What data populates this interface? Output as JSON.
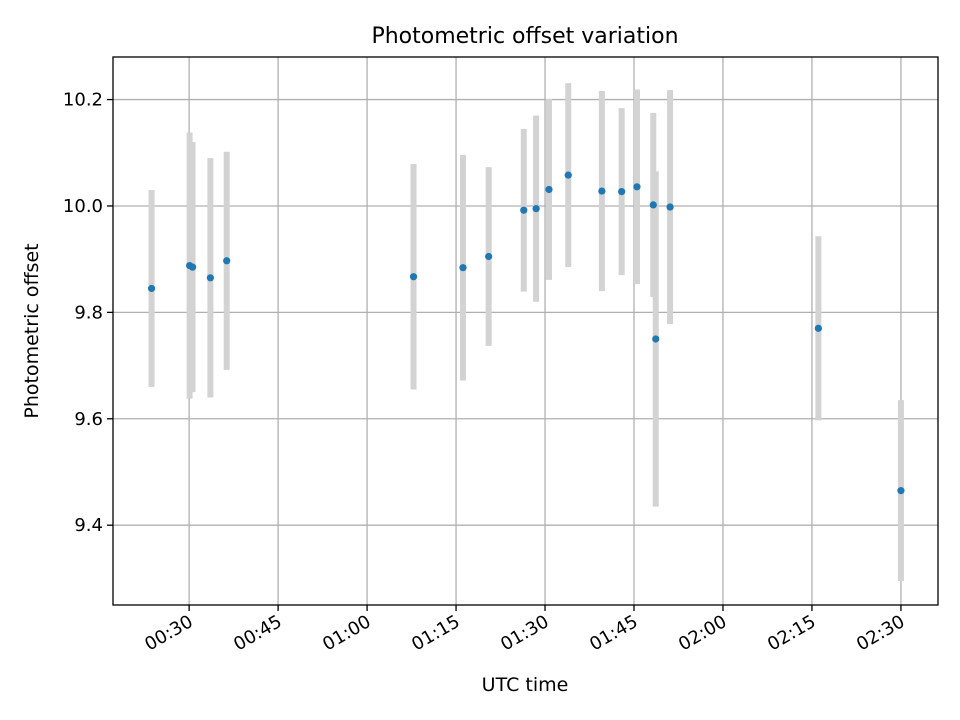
{
  "chart_data": {
    "type": "scatter",
    "title": "Photometric offset variation",
    "xlabel": "UTC time",
    "ylabel": "Photometric offset",
    "x_ticks": [
      "00:30",
      "00:45",
      "01:00",
      "01:15",
      "01:30",
      "01:45",
      "02:00",
      "02:15",
      "02:30"
    ],
    "y_ticks": [
      "9.4",
      "9.6",
      "9.8",
      "10.0",
      "10.2"
    ],
    "xlim": [
      "00:17:10",
      "02:36:15"
    ],
    "ylim": [
      9.25,
      10.28
    ],
    "grid": true,
    "colors": {
      "point": "#1f77b4",
      "errorbar": "#d3d3d3",
      "grid": "#b0b0b0",
      "axes": "#000000"
    },
    "series": [
      {
        "points": [
          {
            "x": "00:23:40",
            "y": 9.845,
            "err": 0.185
          },
          {
            "x": "00:30:05",
            "y": 9.888,
            "err": 0.25
          },
          {
            "x": "00:30:35",
            "y": 9.885,
            "err": 0.235
          },
          {
            "x": "00:33:35",
            "y": 9.865,
            "err": 0.225
          },
          {
            "x": "00:36:20",
            "y": 9.897,
            "err": 0.205
          },
          {
            "x": "01:07:50",
            "y": 9.867,
            "err": 0.212
          },
          {
            "x": "01:16:10",
            "y": 9.884,
            "err": 0.212
          },
          {
            "x": "01:20:30",
            "y": 9.905,
            "err": 0.168
          },
          {
            "x": "01:26:25",
            "y": 9.992,
            "err": 0.153
          },
          {
            "x": "01:28:30",
            "y": 9.995,
            "err": 0.175
          },
          {
            "x": "01:30:40",
            "y": 10.031,
            "err": 0.17
          },
          {
            "x": "01:33:55",
            "y": 10.058,
            "err": 0.173
          },
          {
            "x": "01:39:35",
            "y": 10.028,
            "err": 0.188
          },
          {
            "x": "01:42:55",
            "y": 10.027,
            "err": 0.157
          },
          {
            "x": "01:45:30",
            "y": 10.036,
            "err": 0.183
          },
          {
            "x": "01:48:15",
            "y": 10.002,
            "err": 0.173
          },
          {
            "x": "01:48:40",
            "y": 9.75,
            "err": 0.315
          },
          {
            "x": "01:51:05",
            "y": 9.998,
            "err": 0.22
          },
          {
            "x": "02:16:05",
            "y": 9.77,
            "err": 0.173
          },
          {
            "x": "02:30:00",
            "y": 9.465,
            "err": 0.17
          }
        ]
      }
    ]
  }
}
